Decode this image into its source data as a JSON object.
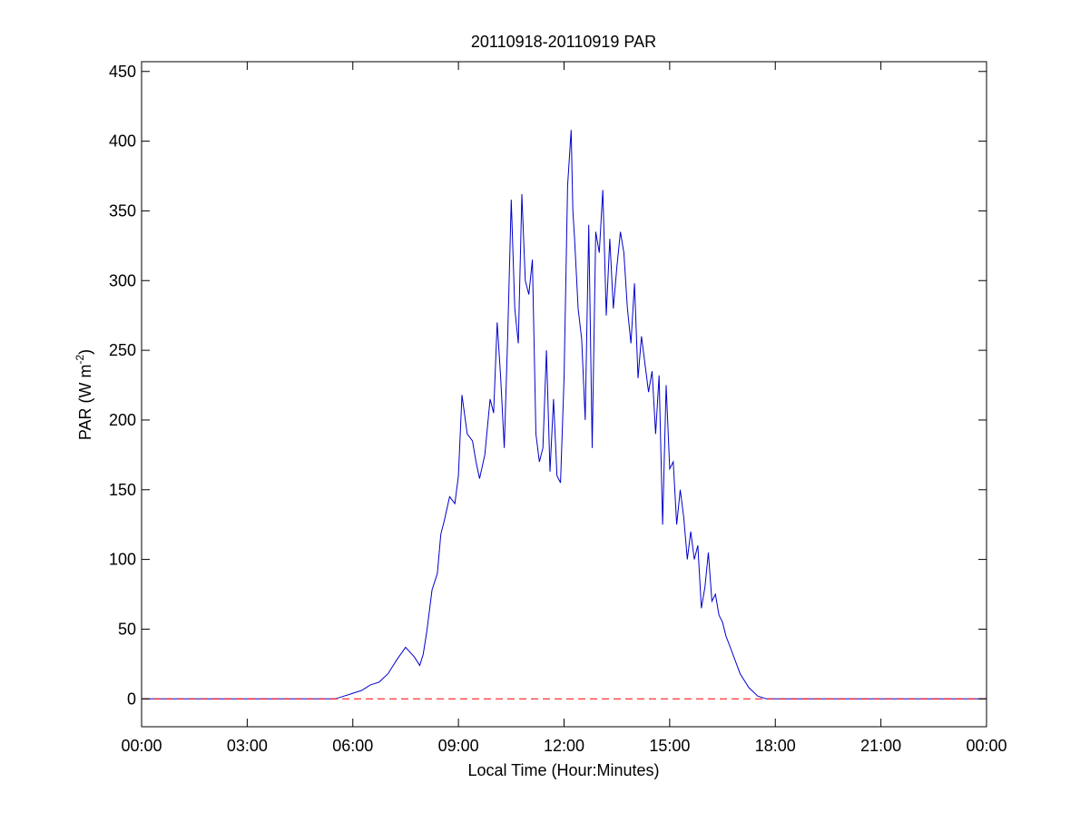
{
  "chart_data": {
    "type": "line",
    "title": "20110918-20110919 PAR",
    "xlabel": "Local Time (Hour:Minutes)",
    "ylabel": {
      "main": "PAR (W m",
      "superscript": "-2",
      "close": ")"
    },
    "xlim_hours": [
      0,
      24
    ],
    "ylim": [
      -20,
      457
    ],
    "x_ticks": [
      {
        "hour": 0,
        "label": "00:00"
      },
      {
        "hour": 3,
        "label": "03:00"
      },
      {
        "hour": 6,
        "label": "06:00"
      },
      {
        "hour": 9,
        "label": "09:00"
      },
      {
        "hour": 12,
        "label": "12:00"
      },
      {
        "hour": 15,
        "label": "15:00"
      },
      {
        "hour": 18,
        "label": "18:00"
      },
      {
        "hour": 21,
        "label": "21:00"
      },
      {
        "hour": 24,
        "label": "00:00"
      }
    ],
    "y_ticks": [
      0,
      50,
      100,
      150,
      200,
      250,
      300,
      350,
      400,
      450
    ],
    "grid": false,
    "legend": "none",
    "series": [
      {
        "color": "#0000cc",
        "style": "solid",
        "x": [
          0,
          5.5,
          5.75,
          6.0,
          6.25,
          6.5,
          6.75,
          7.0,
          7.25,
          7.5,
          7.75,
          7.9,
          8.0,
          8.1,
          8.25,
          8.4,
          8.5,
          8.6,
          8.75,
          8.9,
          9.0,
          9.1,
          9.25,
          9.4,
          9.5,
          9.6,
          9.75,
          9.9,
          10.0,
          10.1,
          10.2,
          10.3,
          10.4,
          10.5,
          10.6,
          10.7,
          10.8,
          10.9,
          11.0,
          11.1,
          11.2,
          11.3,
          11.4,
          11.5,
          11.6,
          11.7,
          11.8,
          11.9,
          12.0,
          12.1,
          12.2,
          12.25,
          12.3,
          12.4,
          12.5,
          12.6,
          12.7,
          12.8,
          12.9,
          13.0,
          13.1,
          13.2,
          13.3,
          13.4,
          13.5,
          13.6,
          13.7,
          13.8,
          13.9,
          14.0,
          14.1,
          14.2,
          14.3,
          14.4,
          14.5,
          14.6,
          14.7,
          14.8,
          14.9,
          15.0,
          15.1,
          15.2,
          15.3,
          15.4,
          15.5,
          15.6,
          15.7,
          15.8,
          15.9,
          16.0,
          16.1,
          16.2,
          16.3,
          16.4,
          16.5,
          16.6,
          16.75,
          17.0,
          17.25,
          17.5,
          17.75,
          18.0,
          18.2,
          24
        ],
        "y": [
          0,
          0,
          2,
          4,
          6,
          10,
          12,
          18,
          28,
          37,
          30,
          24,
          32,
          48,
          78,
          90,
          118,
          128,
          145,
          140,
          160,
          218,
          190,
          185,
          170,
          158,
          175,
          215,
          205,
          270,
          230,
          180,
          260,
          358,
          280,
          255,
          362,
          300,
          290,
          315,
          190,
          170,
          180,
          250,
          163,
          215,
          160,
          155,
          230,
          368,
          408,
          350,
          330,
          280,
          258,
          200,
          340,
          180,
          335,
          320,
          365,
          275,
          330,
          280,
          310,
          335,
          320,
          280,
          255,
          298,
          230,
          260,
          240,
          220,
          235,
          190,
          232,
          125,
          225,
          165,
          170,
          125,
          150,
          130,
          100,
          120,
          100,
          110,
          65,
          80,
          105,
          70,
          75,
          60,
          55,
          45,
          35,
          18,
          8,
          2,
          0,
          0,
          0,
          0
        ]
      },
      {
        "color": "#ff0000",
        "style": "dashed",
        "x": [
          0,
          24
        ],
        "y": [
          0,
          0
        ]
      }
    ]
  }
}
